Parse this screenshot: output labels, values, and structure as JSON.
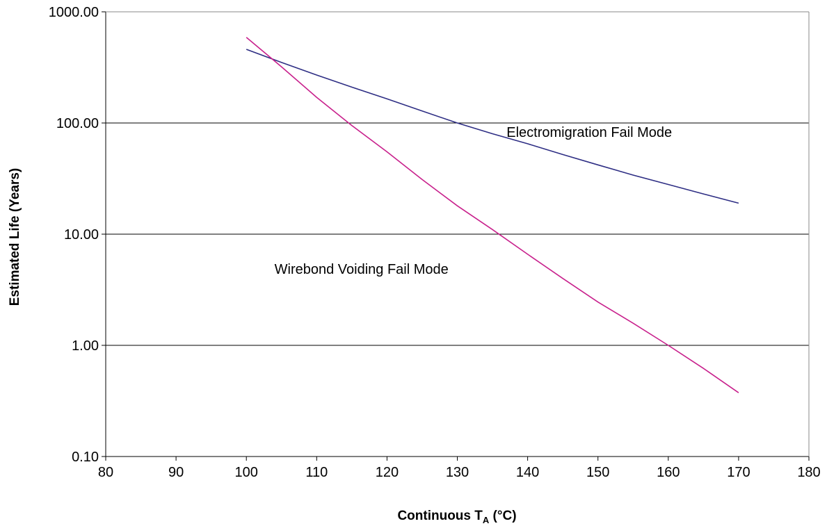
{
  "chart_data": {
    "type": "line",
    "xlabel_main": "Continuous T",
    "xlabel_sub": "A",
    "xlabel_tail": " (°C)",
    "ylabel": "Estimated Life (Years)",
    "xlim": [
      80,
      180
    ],
    "ylim": [
      0.1,
      1000
    ],
    "yscale": "log",
    "x_ticks": [
      80,
      90,
      100,
      110,
      120,
      130,
      140,
      150,
      160,
      170,
      180
    ],
    "y_ticks": [
      {
        "value": 0.1,
        "label": "0.10"
      },
      {
        "value": 1,
        "label": "1.00"
      },
      {
        "value": 10,
        "label": "10.00"
      },
      {
        "value": 100,
        "label": "100.00"
      },
      {
        "value": 1000,
        "label": "1000.00"
      }
    ],
    "grid": {
      "horizontal": true,
      "vertical": false
    },
    "series": [
      {
        "key": "electromigration",
        "color": "#2e2e84",
        "x": [
          100,
          105,
          110,
          115,
          120,
          125,
          130,
          135,
          140,
          145,
          150,
          155,
          160,
          165,
          170
        ],
        "values": [
          460,
          350,
          270,
          210,
          165,
          128,
          100,
          80,
          65,
          52,
          42,
          34,
          28,
          23,
          19
        ]
      },
      {
        "key": "wirebond",
        "color": "#c8208c",
        "x": [
          100,
          105,
          110,
          115,
          120,
          125,
          130,
          135,
          140,
          145,
          150,
          155,
          160,
          165,
          170
        ],
        "values": [
          590,
          320,
          170,
          95,
          55,
          31,
          18,
          11,
          6.6,
          4.0,
          2.45,
          1.58,
          1.0,
          0.62,
          0.375
        ]
      }
    ],
    "annotations": [
      {
        "key": "electromigration_label",
        "text": "Electromigration Fail Mode",
        "x": 137,
        "y": 75
      },
      {
        "key": "wirebond_label",
        "text": "Wirebond Voiding Fail Mode",
        "x": 104,
        "y": 4.4
      }
    ]
  }
}
